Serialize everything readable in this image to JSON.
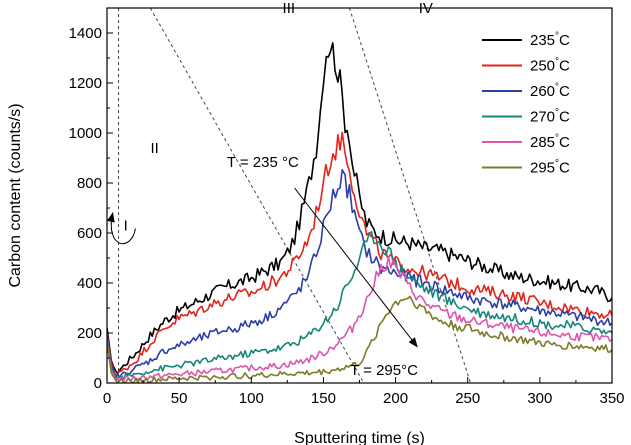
{
  "chart_data": {
    "type": "line",
    "title": "",
    "xlabel": "Sputtering time (s)",
    "ylabel": "Carbon content (counts/s)",
    "xlim": [
      0,
      350
    ],
    "ylim": [
      0,
      1500
    ],
    "x_ticks": [
      0,
      50,
      100,
      150,
      200,
      250,
      300,
      350
    ],
    "y_ticks": [
      0,
      200,
      400,
      600,
      800,
      1000,
      1200,
      1400
    ],
    "grid": false,
    "legend_position": "top-right",
    "legend_unit": "°C",
    "series": [
      {
        "name": "235",
        "color": "#000000",
        "points": [
          [
            0,
            220
          ],
          [
            3,
            90
          ],
          [
            6,
            40
          ],
          [
            10,
            60
          ],
          [
            20,
            120
          ],
          [
            30,
            190
          ],
          [
            40,
            250
          ],
          [
            50,
            290
          ],
          [
            60,
            320
          ],
          [
            70,
            350
          ],
          [
            80,
            380
          ],
          [
            90,
            400
          ],
          [
            100,
            420
          ],
          [
            110,
            450
          ],
          [
            120,
            480
          ],
          [
            125,
            520
          ],
          [
            130,
            580
          ],
          [
            135,
            680
          ],
          [
            140,
            800
          ],
          [
            145,
            950
          ],
          [
            148,
            1100
          ],
          [
            150,
            1250
          ],
          [
            152,
            1330
          ],
          [
            155,
            1360
          ],
          [
            158,
            1300
          ],
          [
            160,
            1250
          ],
          [
            163,
            1150
          ],
          [
            165,
            1050
          ],
          [
            168,
            1000
          ],
          [
            170,
            880
          ],
          [
            173,
            800
          ],
          [
            175,
            740
          ],
          [
            180,
            640
          ],
          [
            185,
            610
          ],
          [
            190,
            590
          ],
          [
            200,
            570
          ],
          [
            210,
            560
          ],
          [
            220,
            540
          ],
          [
            230,
            530
          ],
          [
            240,
            510
          ],
          [
            250,
            490
          ],
          [
            260,
            470
          ],
          [
            270,
            450
          ],
          [
            280,
            430
          ],
          [
            290,
            420
          ],
          [
            300,
            410
          ],
          [
            310,
            400
          ],
          [
            320,
            390
          ],
          [
            330,
            380
          ],
          [
            340,
            370
          ],
          [
            350,
            340
          ]
        ]
      },
      {
        "name": "250",
        "color": "#e3241b",
        "points": [
          [
            0,
            200
          ],
          [
            3,
            80
          ],
          [
            6,
            30
          ],
          [
            10,
            45
          ],
          [
            20,
            90
          ],
          [
            30,
            160
          ],
          [
            40,
            220
          ],
          [
            50,
            260
          ],
          [
            60,
            280
          ],
          [
            70,
            310
          ],
          [
            80,
            330
          ],
          [
            90,
            350
          ],
          [
            100,
            360
          ],
          [
            110,
            390
          ],
          [
            120,
            420
          ],
          [
            130,
            480
          ],
          [
            140,
            580
          ],
          [
            145,
            680
          ],
          [
            150,
            800
          ],
          [
            155,
            900
          ],
          [
            160,
            950
          ],
          [
            163,
            990
          ],
          [
            165,
            920
          ],
          [
            168,
            880
          ],
          [
            170,
            800
          ],
          [
            173,
            740
          ],
          [
            175,
            680
          ],
          [
            180,
            600
          ],
          [
            185,
            560
          ],
          [
            190,
            520
          ],
          [
            200,
            480
          ],
          [
            210,
            460
          ],
          [
            220,
            440
          ],
          [
            230,
            420
          ],
          [
            240,
            400
          ],
          [
            250,
            380
          ],
          [
            260,
            370
          ],
          [
            270,
            360
          ],
          [
            280,
            350
          ],
          [
            290,
            340
          ],
          [
            300,
            320
          ],
          [
            310,
            310
          ],
          [
            320,
            300
          ],
          [
            330,
            290
          ],
          [
            340,
            280
          ],
          [
            350,
            270
          ]
        ]
      },
      {
        "name": "260",
        "color": "#2b3fa8",
        "points": [
          [
            0,
            190
          ],
          [
            3,
            70
          ],
          [
            6,
            25
          ],
          [
            10,
            30
          ],
          [
            20,
            60
          ],
          [
            30,
            90
          ],
          [
            40,
            130
          ],
          [
            50,
            150
          ],
          [
            60,
            170
          ],
          [
            70,
            190
          ],
          [
            80,
            210
          ],
          [
            90,
            220
          ],
          [
            100,
            240
          ],
          [
            110,
            260
          ],
          [
            120,
            300
          ],
          [
            130,
            350
          ],
          [
            140,
            430
          ],
          [
            145,
            520
          ],
          [
            150,
            620
          ],
          [
            155,
            720
          ],
          [
            160,
            790
          ],
          [
            163,
            820
          ],
          [
            165,
            800
          ],
          [
            168,
            760
          ],
          [
            170,
            700
          ],
          [
            173,
            640
          ],
          [
            175,
            590
          ],
          [
            180,
            530
          ],
          [
            185,
            490
          ],
          [
            190,
            460
          ],
          [
            200,
            440
          ],
          [
            210,
            420
          ],
          [
            220,
            400
          ],
          [
            230,
            380
          ],
          [
            240,
            360
          ],
          [
            250,
            340
          ],
          [
            260,
            330
          ],
          [
            270,
            320
          ],
          [
            280,
            310
          ],
          [
            290,
            300
          ],
          [
            300,
            290
          ],
          [
            310,
            280
          ],
          [
            320,
            270
          ],
          [
            330,
            260
          ],
          [
            340,
            250
          ],
          [
            350,
            240
          ]
        ]
      },
      {
        "name": "270",
        "color": "#16857a",
        "points": [
          [
            0,
            180
          ],
          [
            3,
            60
          ],
          [
            6,
            20
          ],
          [
            10,
            25
          ],
          [
            20,
            35
          ],
          [
            30,
            50
          ],
          [
            40,
            60
          ],
          [
            50,
            70
          ],
          [
            60,
            80
          ],
          [
            70,
            90
          ],
          [
            80,
            100
          ],
          [
            90,
            110
          ],
          [
            100,
            120
          ],
          [
            110,
            130
          ],
          [
            120,
            140
          ],
          [
            130,
            160
          ],
          [
            140,
            190
          ],
          [
            150,
            240
          ],
          [
            160,
            310
          ],
          [
            165,
            380
          ],
          [
            170,
            430
          ],
          [
            175,
            500
          ],
          [
            180,
            560
          ],
          [
            185,
            590
          ],
          [
            190,
            560
          ],
          [
            195,
            530
          ],
          [
            200,
            480
          ],
          [
            210,
            420
          ],
          [
            220,
            380
          ],
          [
            230,
            350
          ],
          [
            240,
            320
          ],
          [
            250,
            300
          ],
          [
            260,
            280
          ],
          [
            270,
            270
          ],
          [
            280,
            260
          ],
          [
            290,
            250
          ],
          [
            300,
            240
          ],
          [
            310,
            230
          ],
          [
            320,
            230
          ],
          [
            330,
            220
          ],
          [
            340,
            210
          ],
          [
            350,
            200
          ]
        ]
      },
      {
        "name": "285",
        "color": "#dd55b0",
        "points": [
          [
            0,
            170
          ],
          [
            3,
            50
          ],
          [
            6,
            15
          ],
          [
            10,
            15
          ],
          [
            20,
            20
          ],
          [
            30,
            25
          ],
          [
            40,
            30
          ],
          [
            50,
            35
          ],
          [
            60,
            40
          ],
          [
            70,
            45
          ],
          [
            80,
            50
          ],
          [
            90,
            55
          ],
          [
            100,
            60
          ],
          [
            110,
            65
          ],
          [
            120,
            70
          ],
          [
            130,
            80
          ],
          [
            140,
            95
          ],
          [
            150,
            120
          ],
          [
            160,
            160
          ],
          [
            170,
            220
          ],
          [
            180,
            330
          ],
          [
            185,
            400
          ],
          [
            190,
            460
          ],
          [
            195,
            490
          ],
          [
            200,
            460
          ],
          [
            205,
            420
          ],
          [
            210,
            380
          ],
          [
            220,
            320
          ],
          [
            230,
            290
          ],
          [
            240,
            270
          ],
          [
            250,
            250
          ],
          [
            260,
            240
          ],
          [
            270,
            230
          ],
          [
            280,
            220
          ],
          [
            290,
            210
          ],
          [
            300,
            200
          ],
          [
            310,
            195
          ],
          [
            320,
            190
          ],
          [
            330,
            185
          ],
          [
            340,
            180
          ],
          [
            350,
            175
          ]
        ]
      },
      {
        "name": "295",
        "color": "#7d7a28",
        "points": [
          [
            0,
            160
          ],
          [
            3,
            40
          ],
          [
            6,
            10
          ],
          [
            10,
            8
          ],
          [
            20,
            10
          ],
          [
            30,
            12
          ],
          [
            40,
            15
          ],
          [
            50,
            18
          ],
          [
            60,
            20
          ],
          [
            70,
            22
          ],
          [
            80,
            25
          ],
          [
            90,
            28
          ],
          [
            100,
            30
          ],
          [
            110,
            32
          ],
          [
            120,
            35
          ],
          [
            130,
            38
          ],
          [
            140,
            40
          ],
          [
            150,
            45
          ],
          [
            160,
            55
          ],
          [
            170,
            70
          ],
          [
            175,
            80
          ],
          [
            180,
            120
          ],
          [
            185,
            180
          ],
          [
            190,
            240
          ],
          [
            195,
            290
          ],
          [
            200,
            320
          ],
          [
            205,
            340
          ],
          [
            210,
            340
          ],
          [
            215,
            320
          ],
          [
            220,
            290
          ],
          [
            230,
            250
          ],
          [
            240,
            230
          ],
          [
            250,
            220
          ],
          [
            260,
            200
          ],
          [
            270,
            190
          ],
          [
            280,
            180
          ],
          [
            290,
            170
          ],
          [
            300,
            160
          ],
          [
            310,
            150
          ],
          [
            320,
            150
          ],
          [
            330,
            145
          ],
          [
            340,
            140
          ],
          [
            350,
            135
          ]
        ]
      }
    ],
    "region_labels": [
      {
        "label": "I",
        "x": 13,
        "y": 610
      },
      {
        "label": "II",
        "x": 33,
        "y": 920
      },
      {
        "label": "III",
        "x": 126,
        "y": 1480
      },
      {
        "label": "IV",
        "x": 221,
        "y": 1480
      }
    ],
    "region_boundaries": [
      {
        "x1": 8,
        "y1": 1500,
        "x2": 8,
        "y2": 0
      },
      {
        "x1": 30,
        "y1": 1500,
        "x2": 178,
        "y2": 0
      },
      {
        "x1": 168,
        "y1": 1500,
        "x2": 252,
        "y2": 0
      }
    ],
    "annotations": [
      {
        "text": "T = 235 °C",
        "x": 108,
        "y": 865
      },
      {
        "text": "T = 295°C",
        "x": 192,
        "y": 32
      }
    ],
    "trend_arrow": {
      "x1": 130,
      "y1": 780,
      "x2": 215,
      "y2": 145
    },
    "small_arrow": {
      "x1": 10,
      "y1": 610,
      "x2": 4,
      "y2": 680
    }
  }
}
